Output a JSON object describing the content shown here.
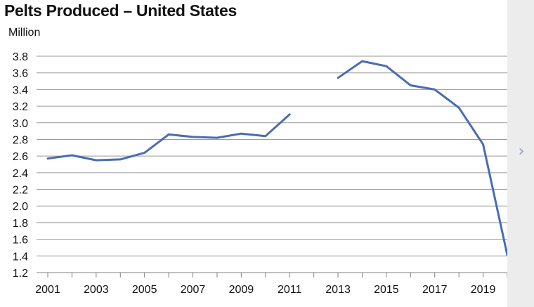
{
  "chart_data": {
    "type": "line",
    "title": "Pelts Produced – United States",
    "ylabel": "Million",
    "xlabel": "",
    "x": [
      2001,
      2002,
      2003,
      2004,
      2005,
      2006,
      2007,
      2008,
      2009,
      2010,
      2011,
      2012,
      2013,
      2014,
      2015,
      2016,
      2017,
      2018,
      2019,
      2020
    ],
    "series": [
      {
        "values": [
          2.57,
          2.61,
          2.55,
          2.56,
          2.64,
          2.86,
          2.83,
          2.82,
          2.87,
          2.84,
          3.1,
          null,
          3.54,
          3.74,
          3.68,
          3.45,
          3.4,
          3.18,
          2.74,
          1.41
        ],
        "color": "#4a6cb3"
      }
    ],
    "xlim": [
      2001,
      2020
    ],
    "ylim": [
      1.2,
      3.8
    ],
    "x_ticks": [
      "2001",
      "2003",
      "2005",
      "2007",
      "2009",
      "2011",
      "2013",
      "2015",
      "2017",
      "2019"
    ],
    "y_ticks": [
      "1.2",
      "1.4",
      "1.6",
      "1.8",
      "2.0",
      "2.2",
      "2.4",
      "2.6",
      "2.8",
      "3.0",
      "3.2",
      "3.4",
      "3.6",
      "3.8"
    ],
    "grid": "horizontal",
    "gridline_color": "#9a9a9a"
  },
  "ui": {
    "next_arrow": "›",
    "next_icon": "chevron-right-icon"
  }
}
